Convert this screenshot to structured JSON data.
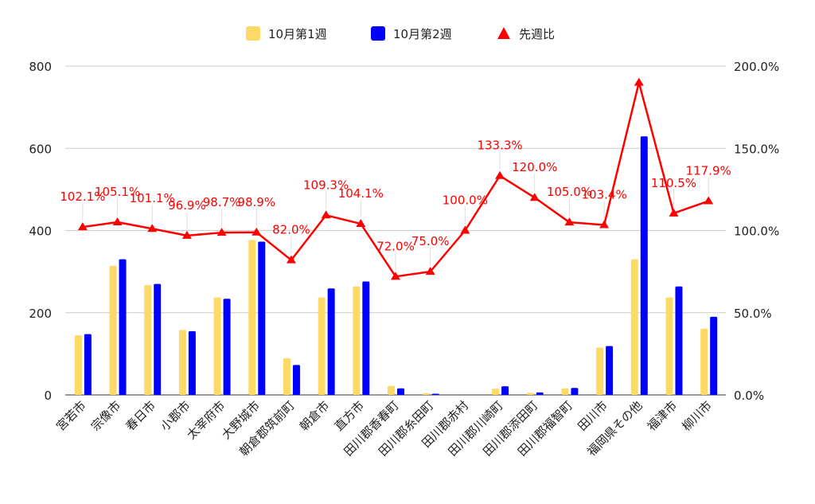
{
  "chart_data": {
    "type": "bar",
    "title": "",
    "xlabel": "",
    "ylabel": "",
    "categories": [
      "宮若市",
      "宗像市",
      "春日市",
      "小郡市",
      "太宰府市",
      "大野城市",
      "朝倉郡筑前町",
      "朝倉市",
      "直方市",
      "田川郡香春町",
      "田川郡糸田町",
      "田川郡赤村",
      "田川郡川崎町",
      "田川郡添田町",
      "田川郡福智町",
      "田川市",
      "福岡県その他",
      "福津市",
      "柳川市"
    ],
    "series": [
      {
        "name": "10月第1週",
        "type": "bar",
        "axis": "left",
        "color": "#FFD966",
        "values": [
          145,
          314,
          267,
          158,
          237,
          377,
          89,
          237,
          264,
          22,
          4,
          0,
          15,
          5,
          16,
          115,
          330,
          237,
          161
        ]
      },
      {
        "name": "10月第2週",
        "type": "bar",
        "axis": "left",
        "color": "#0000FF",
        "values": [
          148,
          330,
          270,
          155,
          234,
          373,
          73,
          259,
          276,
          16,
          3,
          0,
          21,
          6,
          17,
          119,
          629,
          264,
          190
        ]
      },
      {
        "name": "先週比",
        "type": "line",
        "axis": "right",
        "color": "#FF0000",
        "marker": "triangle",
        "values": [
          102.1,
          105.1,
          101.1,
          96.9,
          98.7,
          98.9,
          82.0,
          109.3,
          104.1,
          72.0,
          75.0,
          100.0,
          133.3,
          120.0,
          105.0,
          103.4,
          190.0,
          110.5,
          117.9
        ],
        "labels": [
          "102.1%",
          "105.1%",
          "101.1%",
          "96.9%",
          "98.7%",
          "98.9%",
          "82.0%",
          "109.3%",
          "104.1%",
          "72.0%",
          "75.0%",
          "100.0%",
          "133.3%",
          "120.0%",
          "105.0%",
          "103.4%",
          "",
          "110.5%",
          "117.9%"
        ]
      }
    ],
    "y_left": {
      "min": 0,
      "max": 800,
      "ticks": [
        "0",
        "200",
        "400",
        "600",
        "800"
      ]
    },
    "y_right": {
      "min": 0,
      "max": 200,
      "ticks": [
        "0.0%",
        "50.0%",
        "100.0%",
        "150.0%",
        "200.0%"
      ]
    },
    "grid": true,
    "legend_position": "top"
  }
}
